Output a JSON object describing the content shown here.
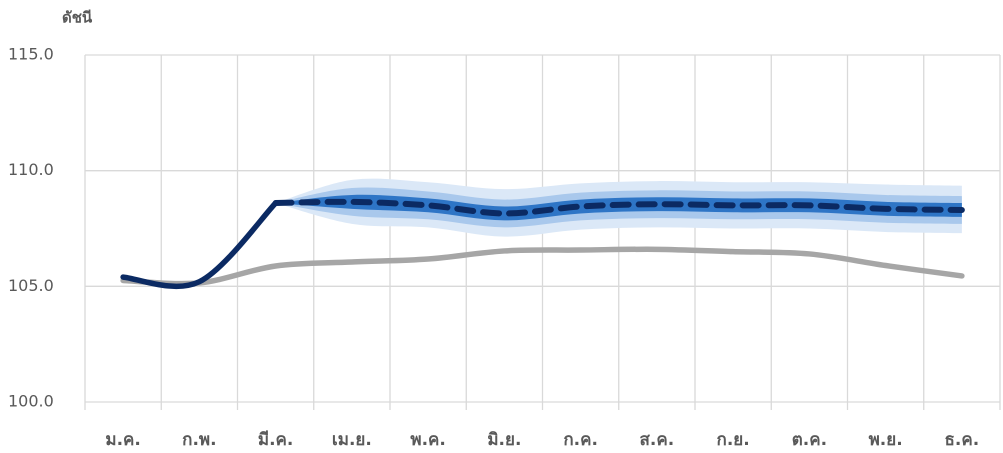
{
  "chart_data": {
    "type": "line",
    "y_label": "ดัชนี",
    "categories": [
      "ม.ค.",
      "ก.พ.",
      "มี.ค.",
      "เม.ย.",
      "พ.ค.",
      "มิ.ย.",
      "ก.ค.",
      "ส.ค.",
      "ก.ย.",
      "ต.ค.",
      "พ.ย.",
      "ธ.ค."
    ],
    "ylim": [
      100,
      115
    ],
    "yticks": [
      {
        "value": 100,
        "label": "100.0"
      },
      {
        "value": 105,
        "label": "105.0"
      },
      {
        "value": 110,
        "label": "110.0"
      },
      {
        "value": 115,
        "label": "115.0"
      }
    ],
    "grid": true,
    "bands": [
      {
        "color": "#dbe8f7",
        "upper": [
          null,
          null,
          108.6,
          109.6,
          109.5,
          109.2,
          109.45,
          109.55,
          109.5,
          109.5,
          109.4,
          109.35
        ],
        "lower": [
          null,
          null,
          108.6,
          107.7,
          107.55,
          107.15,
          107.45,
          107.55,
          107.5,
          107.5,
          107.35,
          107.3
        ]
      },
      {
        "color": "#a9c8ec",
        "upper": [
          null,
          null,
          108.6,
          109.25,
          109.1,
          108.75,
          109.05,
          109.15,
          109.1,
          109.1,
          108.95,
          108.9
        ],
        "lower": [
          null,
          null,
          108.6,
          108.05,
          107.9,
          107.55,
          107.85,
          107.95,
          107.9,
          107.9,
          107.75,
          107.7
        ]
      },
      {
        "color": "#2e75c6",
        "upper": [
          null,
          null,
          108.6,
          108.95,
          108.8,
          108.45,
          108.75,
          108.85,
          108.8,
          108.8,
          108.65,
          108.6
        ],
        "lower": [
          null,
          null,
          108.6,
          108.35,
          108.2,
          107.85,
          108.15,
          108.25,
          108.2,
          108.2,
          108.05,
          108.0
        ]
      }
    ],
    "series": [
      {
        "color": "#a6a6a6",
        "dash": false,
        "values": [
          105.25,
          105.15,
          105.88,
          106.05,
          106.18,
          106.53,
          106.57,
          106.6,
          106.5,
          106.4,
          105.9,
          105.45
        ]
      },
      {
        "color": "#0b2a63",
        "dash": false,
        "values": [
          105.4,
          105.2,
          108.6,
          null,
          null,
          null,
          null,
          null,
          null,
          null,
          null,
          null
        ]
      },
      {
        "color": "#0b2a63",
        "dash": true,
        "values": [
          null,
          null,
          108.6,
          108.65,
          108.5,
          108.15,
          108.45,
          108.55,
          108.5,
          108.5,
          108.35,
          108.3
        ]
      }
    ]
  }
}
